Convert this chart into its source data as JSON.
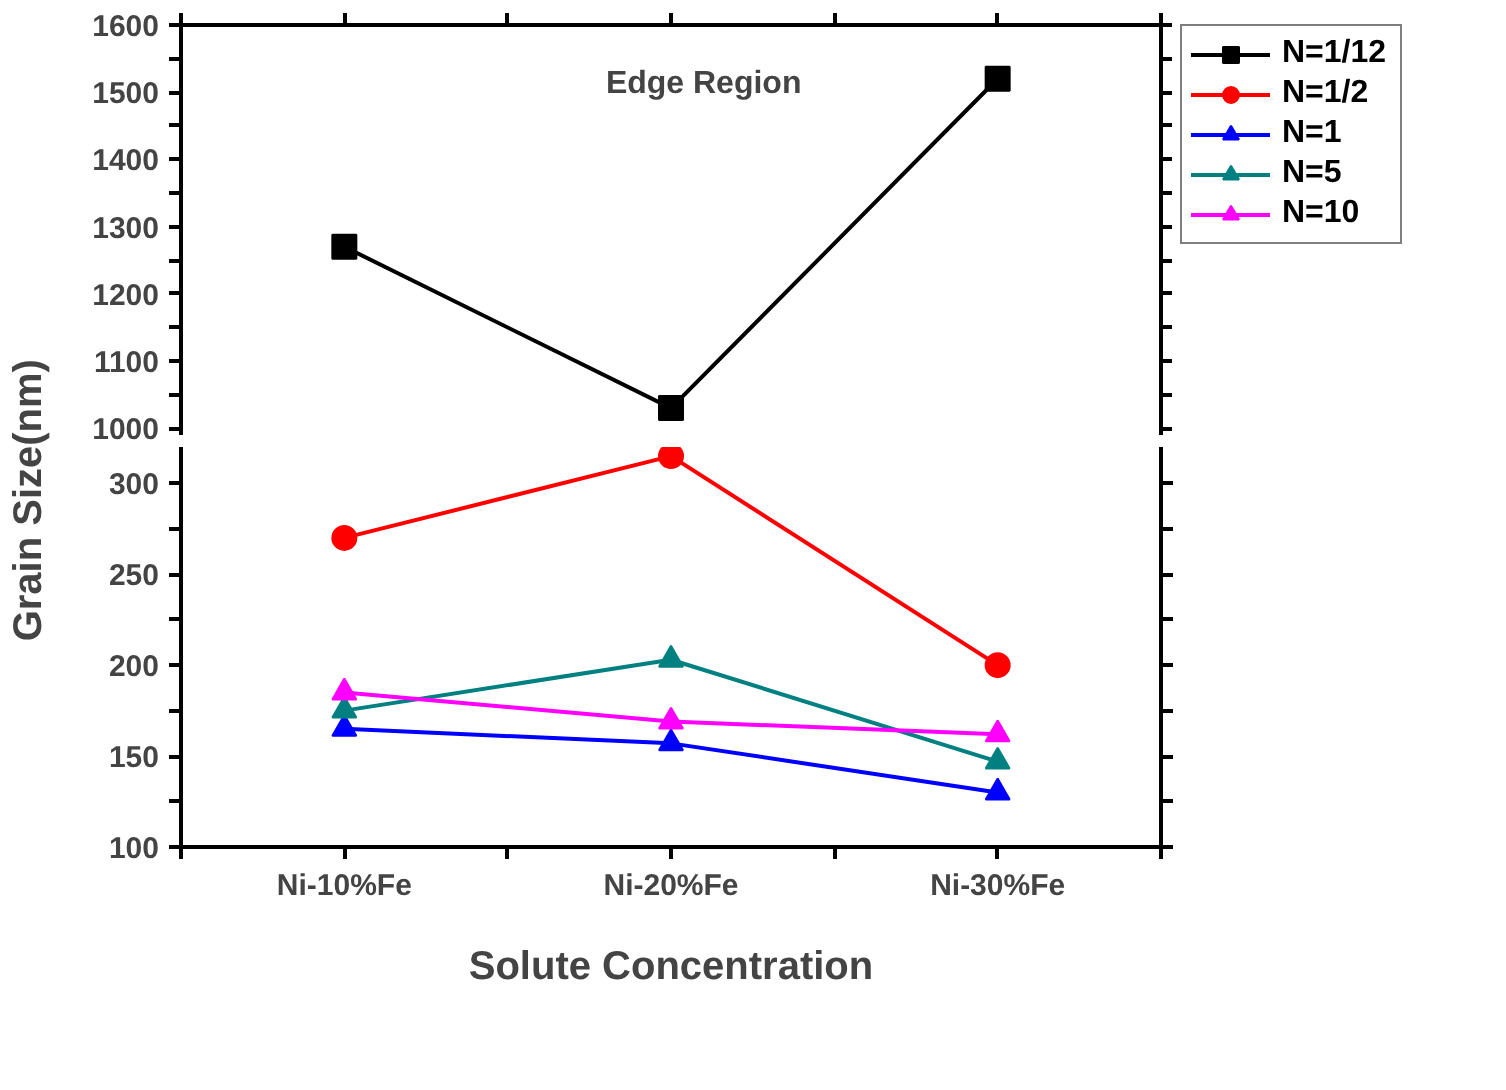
{
  "chart_data": [
    {
      "type": "line",
      "categories": [
        null,
        null,
        null
      ],
      "ylim": [
        990,
        1600
      ],
      "yticks": [
        1000,
        {
          "value": 1050,
          "label": null
        },
        1100,
        {
          "value": 1150,
          "label": null
        },
        1200,
        {
          "value": 1250,
          "label": null
        },
        1300,
        {
          "value": 1350,
          "label": null
        },
        1400,
        {
          "value": 1450,
          "label": null
        },
        1500,
        {
          "value": 1550,
          "label": null
        },
        1600
      ],
      "tick_labels": "y",
      "legend": "top right",
      "annotations": [
        "Edge Region"
      ],
      "series": [
        {
          "name": "N=1/12",
          "color": "#000000",
          "marker": "square",
          "values": [
            1270,
            1030,
            1520
          ]
        }
      ]
    },
    {
      "type": "line",
      "categories": [
        "Ni-10%Fe",
        "Ni-20%Fe",
        "Ni-30%Fe"
      ],
      "ylim": [
        100,
        320
      ],
      "yticks": [
        100,
        {
          "value": 125,
          "label": null
        },
        150,
        {
          "value": 175,
          "label": null
        },
        200,
        {
          "value": 225,
          "label": null
        },
        250,
        {
          "value": 275,
          "label": null
        },
        300
      ],
      "xlabel": "Solute Concentration",
      "ylabel": "Grain Size(nm)",
      "legend": "top right",
      "series": [
        {
          "name": "N=1/2",
          "color": "#ff0000",
          "marker": "circle",
          "values": [
            270,
            315,
            200
          ]
        },
        {
          "name": "N=1",
          "color": "#0000ff",
          "marker": "triangle",
          "values": [
            165,
            157,
            130
          ]
        },
        {
          "name": "N=5",
          "color": "#008080",
          "marker": "triangle",
          "values": [
            175,
            203,
            147
          ]
        },
        {
          "name": "N=10",
          "color": "#ff00ff",
          "marker": "triangle",
          "values": [
            185,
            169,
            162
          ]
        }
      ]
    }
  ]
}
